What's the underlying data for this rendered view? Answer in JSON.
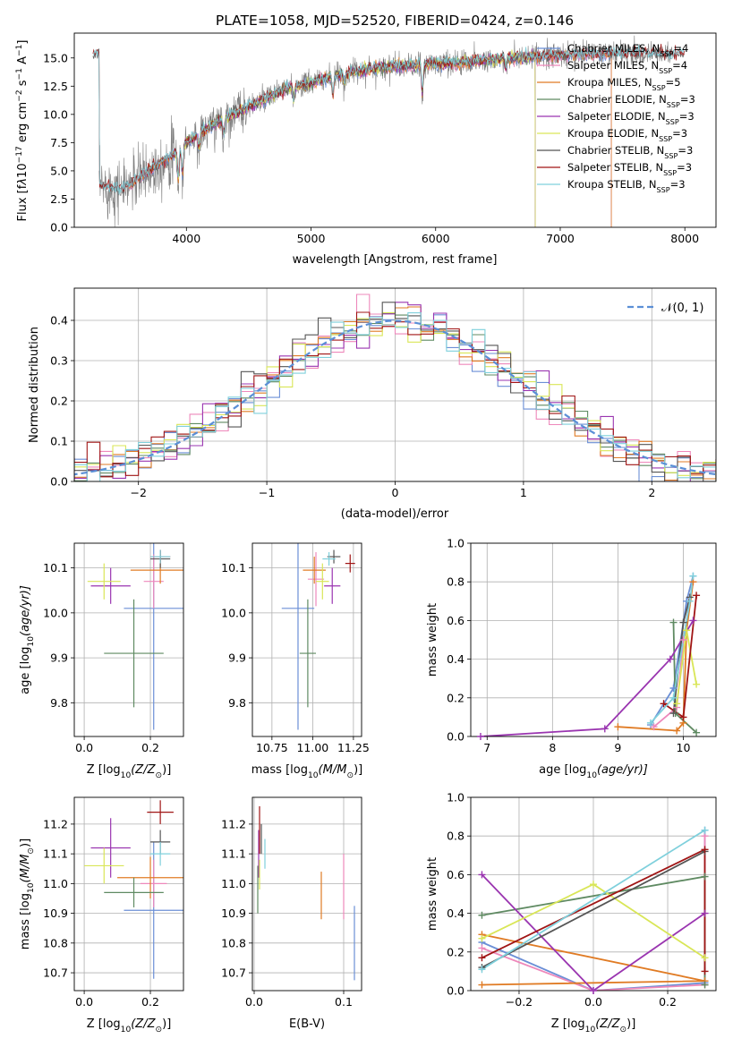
{
  "colors": {
    "chabrier_miles": "#6b8fd6",
    "salpeter_miles": "#ee88bb",
    "kroupa_miles": "#e07b24",
    "chabrier_elodie": "#5f8a62",
    "salpeter_elodie": "#9a35b0",
    "kroupa_elodie": "#d9e657",
    "chabrier_stelib": "#555555",
    "salpeter_stelib": "#a01515",
    "kroupa_stelib": "#7fd0dc",
    "grid": "#b0b0b0",
    "data": "#7f7f7f",
    "normal": "#5b8fd6"
  },
  "chart_data": [
    {
      "id": "spectrum",
      "type": "line",
      "title": "PLATE=1058, MJD=52520, FIBERID=0424, z=0.146",
      "xlabel": "wavelength [Angstrom, rest frame]",
      "ylabel_parts": [
        "Flux [f",
        "λ",
        "10",
        "−17",
        " erg cm",
        "−2",
        " s",
        "−1",
        " A",
        "−1",
        "]"
      ],
      "xlim": [
        3100,
        8250
      ],
      "ylim": [
        0,
        17.2
      ],
      "xticks": [
        4000,
        5000,
        6000,
        7000,
        8000
      ],
      "yticks": [
        0.0,
        2.5,
        5.0,
        7.5,
        10.0,
        12.5,
        15.0
      ],
      "grid": false,
      "legend_position": "top-right",
      "legend": [
        {
          "base": "Chabrier MILES, N",
          "sub": "SSP",
          "suffix": "=4",
          "color": "chabrier_miles"
        },
        {
          "base": "Salpeter MILES, N",
          "sub": "SSP",
          "suffix": "=4",
          "color": "salpeter_miles"
        },
        {
          "base": "Kroupa MILES, N",
          "sub": "SSP",
          "suffix": "=5",
          "color": "kroupa_miles"
        },
        {
          "base": "Chabrier ELODIE, N",
          "sub": "SSP",
          "suffix": "=3",
          "color": "chabrier_elodie"
        },
        {
          "base": "Salpeter ELODIE, N",
          "sub": "SSP",
          "suffix": "=3",
          "color": "salpeter_elodie"
        },
        {
          "base": "Kroupa ELODIE, N",
          "sub": "SSP",
          "suffix": "=3",
          "color": "kroupa_elodie"
        },
        {
          "base": "Chabrier STELIB, N",
          "sub": "SSP",
          "suffix": "=3",
          "color": "chabrier_stelib"
        },
        {
          "base": "Salpeter STELIB, N",
          "sub": "SSP",
          "suffix": "=3",
          "color": "salpeter_stelib"
        },
        {
          "base": "Kroupa STELIB, N",
          "sub": "SSP",
          "suffix": "=3",
          "color": "kroupa_stelib"
        }
      ],
      "continuum": [
        [
          3300,
          3.6
        ],
        [
          3500,
          3.4
        ],
        [
          3700,
          5.0
        ],
        [
          3900,
          6.5
        ],
        [
          4000,
          7.5
        ],
        [
          4200,
          9.0
        ],
        [
          4400,
          10.2
        ],
        [
          4600,
          11.2
        ],
        [
          4800,
          12.3
        ],
        [
          5000,
          12.8
        ],
        [
          5200,
          13.4
        ],
        [
          5400,
          13.9
        ],
        [
          5600,
          14.2
        ],
        [
          5800,
          14.3
        ],
        [
          6000,
          14.5
        ],
        [
          6200,
          14.6
        ],
        [
          6400,
          14.8
        ],
        [
          6600,
          15.0
        ],
        [
          6800,
          15.1
        ],
        [
          7000,
          15.2
        ],
        [
          7200,
          15.3
        ],
        [
          7400,
          15.4
        ],
        [
          7600,
          15.4
        ],
        [
          7800,
          15.4
        ],
        [
          7900,
          15.3
        ]
      ],
      "absorption_features": [
        [
          3934,
          3.2
        ],
        [
          3968,
          2.8
        ],
        [
          4102,
          1.5
        ],
        [
          4300,
          1.8
        ],
        [
          4861,
          1.6
        ],
        [
          5175,
          2.0
        ],
        [
          5270,
          1.0
        ],
        [
          5893,
          3.0
        ],
        [
          6563,
          1.2
        ]
      ],
      "model_ranges": {
        "miles": [
          3540,
          7410
        ],
        "elodie": [
          3900,
          6800
        ],
        "stelib": [
          3250,
          8000
        ]
      }
    },
    {
      "id": "residuals",
      "type": "histogram",
      "xlabel": "(data-model)/error",
      "ylabel": "Normed distribution",
      "xlim": [
        -2.5,
        2.5
      ],
      "ylim": [
        0,
        0.48
      ],
      "xticks": [
        -2,
        -1,
        0,
        1,
        2
      ],
      "yticks": [
        0.0,
        0.1,
        0.2,
        0.3,
        0.4
      ],
      "grid": true,
      "legend_position": "top-right",
      "legend_label": "𝒩(0, 1)",
      "bin_width": 0.1
    },
    {
      "id": "age_vs_Z",
      "type": "scatter",
      "xlabel_parts": [
        "Z [log",
        "10",
        "(Z/Z",
        "⊙",
        ")]"
      ],
      "ylabel_parts": [
        "age  [log",
        "10",
        "(age/yr)]"
      ],
      "xlim": [
        -0.03,
        0.3
      ],
      "ylim": [
        9.725,
        10.155
      ],
      "xticks": [
        0.0,
        0.2
      ],
      "yticks": [
        9.8,
        9.9,
        10.0,
        10.1
      ],
      "grid": true,
      "points": [
        {
          "m": "chabrier_miles",
          "x": 0.21,
          "xe": 0.09,
          "y": 10.01,
          "ye": 0.27
        },
        {
          "m": "salpeter_miles",
          "x": 0.21,
          "xe": 0.03,
          "y": 10.07,
          "ye": 0.06
        },
        {
          "m": "kroupa_miles",
          "x": 0.23,
          "xe": 0.09,
          "y": 10.095,
          "ye": 0.03
        },
        {
          "m": "chabrier_elodie",
          "x": 0.15,
          "xe": 0.09,
          "y": 9.91,
          "ye": 0.12
        },
        {
          "m": "salpeter_elodie",
          "x": 0.08,
          "xe": 0.06,
          "y": 10.06,
          "ye": 0.04
        },
        {
          "m": "kroupa_elodie",
          "x": 0.06,
          "xe": 0.05,
          "y": 10.07,
          "ye": 0.04
        },
        {
          "m": "chabrier_stelib",
          "x": 0.23,
          "xe": 0.03,
          "y": 10.12,
          "ye": 0.02
        },
        {
          "m": "salpeter_stelib",
          "x": 0.23,
          "xe": 0.03,
          "y": 10.125,
          "ye": 0.015
        },
        {
          "m": "kroupa_stelib",
          "x": 0.23,
          "xe": 0.03,
          "y": 10.125,
          "ye": 0.015
        }
      ]
    },
    {
      "id": "age_vs_mass",
      "type": "scatter",
      "xlabel_parts": [
        "mass [log",
        "10",
        "(M/M",
        "⊙",
        ")]"
      ],
      "xlim": [
        10.63,
        11.3
      ],
      "ylim": [
        9.725,
        10.155
      ],
      "xticks": [
        10.75,
        11.0,
        11.25
      ],
      "yticks": [
        9.8,
        9.9,
        10.0,
        10.1
      ],
      "grid": true,
      "points": [
        {
          "m": "chabrier_miles",
          "x": 10.91,
          "xe": 0.1,
          "y": 10.01,
          "ye": 0.27
        },
        {
          "m": "salpeter_miles",
          "x": 11.02,
          "xe": 0.05,
          "y": 10.075,
          "ye": 0.06
        },
        {
          "m": "kroupa_miles",
          "x": 11.01,
          "xe": 0.07,
          "y": 10.095,
          "ye": 0.03
        },
        {
          "m": "chabrier_elodie",
          "x": 10.97,
          "xe": 0.05,
          "y": 9.91,
          "ye": 0.12
        },
        {
          "m": "salpeter_elodie",
          "x": 11.12,
          "xe": 0.05,
          "y": 10.06,
          "ye": 0.04
        },
        {
          "m": "kroupa_elodie",
          "x": 11.06,
          "xe": 0.04,
          "y": 10.07,
          "ye": 0.04
        },
        {
          "m": "chabrier_stelib",
          "x": 11.13,
          "xe": 0.04,
          "y": 10.125,
          "ye": 0.015
        },
        {
          "m": "salpeter_stelib",
          "x": 11.23,
          "xe": 0.03,
          "y": 10.11,
          "ye": 0.02
        },
        {
          "m": "kroupa_stelib",
          "x": 11.1,
          "xe": 0.04,
          "y": 10.12,
          "ye": 0.015
        }
      ]
    },
    {
      "id": "weight_vs_age",
      "type": "line",
      "xlabel_parts": [
        "age  [log",
        "10",
        "(age/yr)]"
      ],
      "ylabel": "mass weight",
      "xlim": [
        6.75,
        10.5
      ],
      "ylim": [
        0,
        1
      ],
      "xticks": [
        7,
        8,
        9,
        10
      ],
      "yticks": [
        0.0,
        0.2,
        0.4,
        0.6,
        0.8,
        1.0
      ],
      "grid": true,
      "series": [
        {
          "m": "chabrier_miles",
          "pts": [
            [
              9.5,
              0.06
            ],
            [
              9.85,
              0.25
            ],
            [
              10.05,
              0.7
            ],
            [
              10.15,
              0.83
            ]
          ]
        },
        {
          "m": "salpeter_miles",
          "pts": [
            [
              9.55,
              0.05
            ],
            [
              9.9,
              0.15
            ],
            [
              10.0,
              0.5
            ],
            [
              10.15,
              0.8
            ]
          ]
        },
        {
          "m": "kroupa_miles",
          "pts": [
            [
              9.0,
              0.05
            ],
            [
              9.9,
              0.03
            ],
            [
              10.0,
              0.07
            ],
            [
              10.05,
              0.55
            ],
            [
              10.15,
              0.8
            ]
          ]
        },
        {
          "m": "chabrier_elodie",
          "pts": [
            [
              9.85,
              0.59
            ],
            [
              9.88,
              0.12
            ],
            [
              10.2,
              0.02
            ]
          ]
        },
        {
          "m": "salpeter_elodie",
          "pts": [
            [
              6.9,
              0.0
            ],
            [
              8.8,
              0.04
            ],
            [
              9.8,
              0.4
            ],
            [
              10.15,
              0.6
            ]
          ]
        },
        {
          "m": "kroupa_elodie",
          "pts": [
            [
              9.9,
              0.17
            ],
            [
              10.05,
              0.55
            ],
            [
              10.2,
              0.27
            ]
          ]
        },
        {
          "m": "chabrier_stelib",
          "pts": [
            [
              9.85,
              0.12
            ],
            [
              10.0,
              0.59
            ],
            [
              10.1,
              0.72
            ]
          ]
        },
        {
          "m": "salpeter_stelib",
          "pts": [
            [
              9.7,
              0.17
            ],
            [
              10.0,
              0.1
            ],
            [
              10.2,
              0.73
            ]
          ]
        },
        {
          "m": "kroupa_stelib",
          "pts": [
            [
              9.5,
              0.07
            ],
            [
              9.85,
              0.2
            ],
            [
              10.1,
              0.7
            ],
            [
              10.15,
              0.83
            ]
          ]
        }
      ]
    },
    {
      "id": "mass_vs_Z",
      "type": "scatter",
      "xlabel_parts": [
        "Z [log",
        "10",
        "(Z/Z",
        "⊙",
        ")]"
      ],
      "ylabel_parts": [
        "mass [log",
        "10",
        "(M/M",
        "⊙",
        ")]"
      ],
      "xlim": [
        -0.03,
        0.3
      ],
      "ylim": [
        10.64,
        11.29
      ],
      "xticks": [
        0.0,
        0.2
      ],
      "yticks": [
        10.7,
        10.8,
        10.9,
        11.0,
        11.1,
        11.2
      ],
      "grid": true,
      "points": [
        {
          "m": "chabrier_miles",
          "x": 0.21,
          "xe": 0.09,
          "y": 10.91,
          "ye": 0.23
        },
        {
          "m": "salpeter_miles",
          "x": 0.21,
          "xe": 0.04,
          "y": 11.0,
          "ye": 0.08
        },
        {
          "m": "kroupa_miles",
          "x": 0.2,
          "xe": 0.1,
          "y": 11.02,
          "ye": 0.07
        },
        {
          "m": "chabrier_elodie",
          "x": 0.15,
          "xe": 0.09,
          "y": 10.97,
          "ye": 0.05
        },
        {
          "m": "salpeter_elodie",
          "x": 0.08,
          "xe": 0.06,
          "y": 11.12,
          "ye": 0.1
        },
        {
          "m": "kroupa_elodie",
          "x": 0.06,
          "xe": 0.06,
          "y": 11.06,
          "ye": 0.06
        },
        {
          "m": "chabrier_stelib",
          "x": 0.23,
          "xe": 0.03,
          "y": 11.14,
          "ye": 0.04
        },
        {
          "m": "salpeter_stelib",
          "x": 0.23,
          "xe": 0.04,
          "y": 11.24,
          "ye": 0.04
        },
        {
          "m": "kroupa_stelib",
          "x": 0.23,
          "xe": 0.03,
          "y": 11.1,
          "ye": 0.04
        }
      ]
    },
    {
      "id": "mass_vs_ebv",
      "type": "errorbar",
      "xlabel": "E(B-V)",
      "xlim": [
        -0.002,
        0.12
      ],
      "ylim": [
        10.64,
        11.29
      ],
      "xticks": [
        0.0,
        0.1
      ],
      "yticks": [
        10.7,
        10.8,
        10.9,
        11.0,
        11.1,
        11.2
      ],
      "grid": true,
      "points": [
        {
          "m": "chabrier_miles",
          "x": 0.112,
          "y": 10.8,
          "ye": 0.125
        },
        {
          "m": "salpeter_miles",
          "x": 0.1,
          "y": 10.99,
          "ye": 0.11
        },
        {
          "m": "kroupa_miles",
          "x": 0.075,
          "y": 10.96,
          "ye": 0.08
        },
        {
          "m": "chabrier_elodie",
          "x": 0.004,
          "y": 10.98,
          "ye": 0.08
        },
        {
          "m": "salpeter_elodie",
          "x": 0.005,
          "y": 11.1,
          "ye": 0.08
        },
        {
          "m": "kroupa_elodie",
          "x": 0.006,
          "y": 11.03,
          "ye": 0.05
        },
        {
          "m": "chabrier_stelib",
          "x": 0.008,
          "y": 11.15,
          "ye": 0.05
        },
        {
          "m": "salpeter_stelib",
          "x": 0.006,
          "y": 11.18,
          "ye": 0.08
        },
        {
          "m": "kroupa_stelib",
          "x": 0.012,
          "y": 11.1,
          "ye": 0.05
        }
      ]
    },
    {
      "id": "weight_vs_Z",
      "type": "line",
      "xlabel_parts": [
        "Z [log",
        "10",
        "(Z/Z",
        "⊙",
        ")]"
      ],
      "ylabel": "mass weight",
      "xlim": [
        -0.33,
        0.33
      ],
      "ylim": [
        0,
        1
      ],
      "xticks": [
        -0.2,
        0.0,
        0.2
      ],
      "yticks": [
        0.0,
        0.2,
        0.4,
        0.6,
        0.8,
        1.0
      ],
      "grid": true,
      "series": [
        {
          "m": "chabrier_miles",
          "pts": [
            [
              -0.3,
              0.25
            ],
            [
              0.0,
              0.0
            ],
            [
              0.3,
              0.04
            ],
            [
              0.3,
              0.83
            ]
          ]
        },
        {
          "m": "salpeter_miles",
          "pts": [
            [
              -0.3,
              0.22
            ],
            [
              0.0,
              0.0
            ],
            [
              0.3,
              0.03
            ],
            [
              0.3,
              0.8
            ]
          ]
        },
        {
          "m": "kroupa_miles",
          "pts": [
            [
              -0.3,
              0.03
            ],
            [
              0.3,
              0.05
            ],
            [
              -0.3,
              0.29
            ]
          ]
        },
        {
          "m": "chabrier_elodie",
          "pts": [
            [
              -0.3,
              0.39
            ],
            [
              0.3,
              0.59
            ],
            [
              0.3,
              0.03
            ]
          ]
        },
        {
          "m": "salpeter_elodie",
          "pts": [
            [
              -0.3,
              0.6
            ],
            [
              0.0,
              0.0
            ],
            [
              0.3,
              0.4
            ]
          ]
        },
        {
          "m": "kroupa_elodie",
          "pts": [
            [
              -0.3,
              0.27
            ],
            [
              0.0,
              0.55
            ],
            [
              0.3,
              0.17
            ]
          ]
        },
        {
          "m": "chabrier_stelib",
          "pts": [
            [
              -0.3,
              0.12
            ],
            [
              0.3,
              0.72
            ]
          ]
        },
        {
          "m": "salpeter_stelib",
          "pts": [
            [
              -0.3,
              0.17
            ],
            [
              0.3,
              0.73
            ],
            [
              0.3,
              0.1
            ]
          ]
        },
        {
          "m": "kroupa_stelib",
          "pts": [
            [
              -0.3,
              0.11
            ],
            [
              0.3,
              0.83
            ]
          ]
        }
      ]
    }
  ]
}
